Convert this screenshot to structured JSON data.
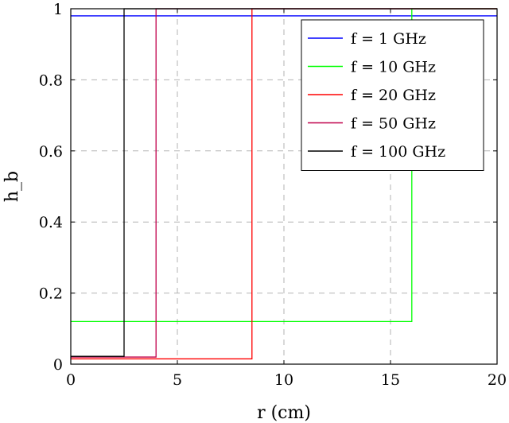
{
  "chart_data": {
    "type": "line",
    "xlabel": "r (cm)",
    "ylabel": "h_b",
    "xlim": [
      0,
      20
    ],
    "ylim": [
      0,
      1
    ],
    "xticks": [
      0,
      5,
      10,
      15,
      20
    ],
    "yticks": [
      0,
      0.2,
      0.4,
      0.6,
      0.8,
      1
    ],
    "xtick_labels": [
      "0",
      "5",
      "10",
      "15",
      "20"
    ],
    "ytick_labels": [
      "0",
      "0.2",
      "0.4",
      "0.6",
      "0.8",
      "1"
    ],
    "grid": true,
    "legend_position": "top-right",
    "series": [
      {
        "name": "f = 1 GHz",
        "color": "#0000ff",
        "x": [
          0,
          20
        ],
        "y": [
          0.98,
          0.98
        ]
      },
      {
        "name": "f = 10 GHz",
        "color": "#00ff00",
        "x": [
          0,
          16,
          16,
          20
        ],
        "y": [
          0.12,
          0.12,
          1,
          1
        ]
      },
      {
        "name": "f = 20 GHz",
        "color": "#ff0000",
        "x": [
          0,
          8.5,
          8.5,
          20
        ],
        "y": [
          0.015,
          0.015,
          1,
          1
        ]
      },
      {
        "name": "f = 50 GHz",
        "color": "#c0004a",
        "x": [
          0,
          4,
          4,
          20
        ],
        "y": [
          0.02,
          0.02,
          1,
          1
        ]
      },
      {
        "name": "f = 100 GHz",
        "color": "#000000",
        "x": [
          0,
          2.5,
          2.5,
          20
        ],
        "y": [
          0.022,
          0.022,
          1,
          1
        ]
      }
    ]
  }
}
